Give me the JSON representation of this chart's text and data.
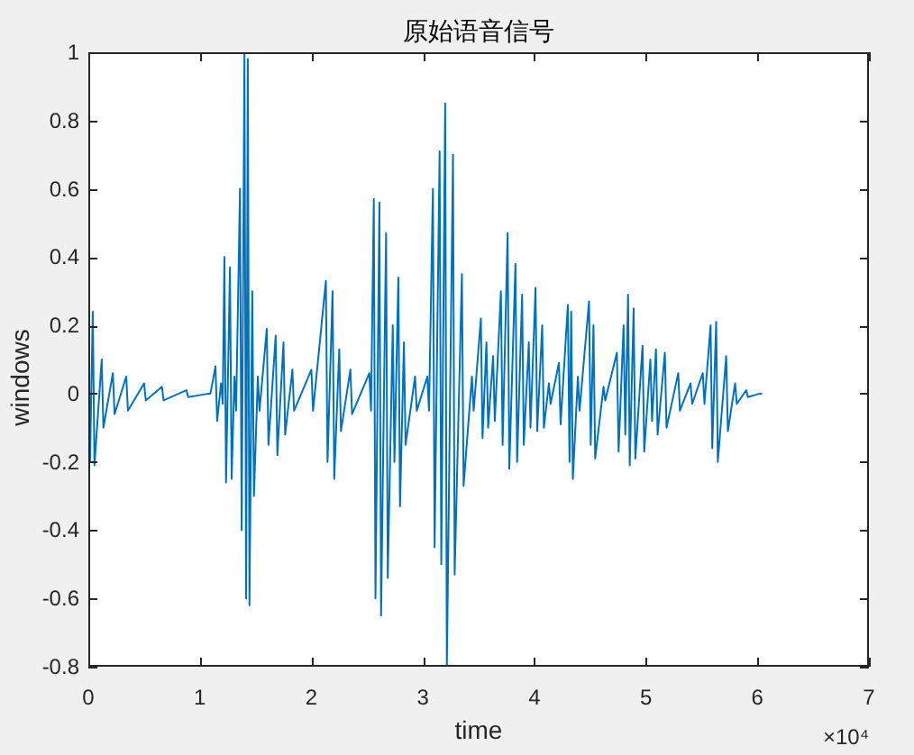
{
  "chart_data": {
    "type": "line",
    "title": "原始语音信号",
    "xlabel": "time",
    "ylabel": "windows",
    "annotations": [
      "×10⁴"
    ],
    "xlim": [
      0,
      7
    ],
    "xticks": [
      0,
      1,
      2,
      3,
      4,
      5,
      6,
      7
    ],
    "ylim": [
      -0.8,
      1
    ],
    "yticks": [
      -0.8,
      -0.6,
      -0.4,
      -0.2,
      0,
      0.2,
      0.4,
      0.6,
      0.8,
      1
    ],
    "series": [
      {
        "color": "#0072bd",
        "x": [
          0,
          0.015,
          0.04,
          0.055,
          0.12,
          0.135,
          0.22,
          0.235,
          0.34,
          0.355,
          0.5,
          0.515,
          0.66,
          0.675,
          0.88,
          0.895,
          1.08,
          1.095,
          1.14,
          1.155,
          1.19,
          1.205,
          1.22,
          1.235,
          1.27,
          1.285,
          1.31,
          1.325,
          1.36,
          1.375,
          1.4,
          1.415,
          1.43,
          1.445,
          1.47,
          1.485,
          1.52,
          1.535,
          1.6,
          1.615,
          1.68,
          1.695,
          1.75,
          1.765,
          1.83,
          1.845,
          2,
          2.015,
          2.13,
          2.145,
          2.19,
          2.205,
          2.25,
          2.265,
          2.35,
          2.365,
          2.52,
          2.535,
          2.56,
          2.575,
          2.61,
          2.625,
          2.67,
          2.685,
          2.73,
          2.745,
          2.78,
          2.795,
          2.83,
          2.845,
          2.93,
          2.945,
          3.04,
          3.055,
          3.09,
          3.105,
          3.15,
          3.165,
          3.2,
          3.215,
          3.27,
          3.285,
          3.35,
          3.365,
          3.44,
          3.455,
          3.52,
          3.535,
          3.57,
          3.585,
          3.63,
          3.645,
          3.7,
          3.715,
          3.76,
          3.775,
          3.83,
          3.845,
          3.89,
          3.905,
          3.95,
          3.965,
          4.01,
          4.025,
          4.07,
          4.085,
          4.13,
          4.145,
          4.22,
          4.235,
          4.3,
          4.315,
          4.33,
          4.345,
          4.39,
          4.405,
          4.49,
          4.505,
          4.53,
          4.545,
          4.62,
          4.635,
          4.74,
          4.755,
          4.8,
          4.815,
          4.84,
          4.855,
          4.89,
          4.905,
          4.97,
          4.985,
          5.04,
          5.055,
          5.09,
          5.105,
          5.17,
          5.185,
          5.29,
          5.305,
          5.4,
          5.415,
          5.51,
          5.525,
          5.58,
          5.595,
          5.63,
          5.645,
          5.72,
          5.735,
          5.8,
          5.815,
          5.9,
          5.915,
          6.02,
          6.035
        ],
        "values": [
          0.22,
          -0.2,
          0.24,
          -0.21,
          0.1,
          -0.1,
          0.06,
          -0.06,
          0.05,
          -0.05,
          0.03,
          -0.02,
          0.02,
          -0.02,
          0.01,
          -0.01,
          0,
          0,
          0.08,
          -0.08,
          0.03,
          -0.03,
          0.4,
          -0.26,
          0.37,
          -0.25,
          0.05,
          -0.05,
          0.6,
          -0.4,
          1,
          -0.6,
          0.98,
          -0.62,
          0.3,
          -0.3,
          0.05,
          -0.05,
          0.19,
          -0.15,
          0.17,
          -0.18,
          0.15,
          -0.12,
          0.07,
          -0.05,
          0.07,
          -0.05,
          0.33,
          -0.2,
          0.3,
          -0.25,
          0.13,
          -0.11,
          0.07,
          -0.06,
          0.06,
          -0.05,
          0.57,
          -0.6,
          0.56,
          -0.65,
          0.47,
          -0.54,
          0.2,
          -0.2,
          0.34,
          -0.33,
          0.15,
          -0.15,
          0.05,
          -0.05,
          0.05,
          -0.05,
          0.6,
          -0.45,
          0.71,
          -0.5,
          0.85,
          -0.8,
          0.7,
          -0.53,
          0.35,
          -0.27,
          0.05,
          -0.05,
          0.22,
          -0.13,
          0.15,
          -0.1,
          0.11,
          -0.08,
          0.3,
          -0.15,
          0.47,
          -0.22,
          0.38,
          -0.2,
          0.29,
          -0.15,
          0.15,
          -0.1,
          0.31,
          -0.11,
          0.2,
          -0.1,
          0.03,
          -0.03,
          0.09,
          -0.09,
          0.26,
          -0.2,
          0.24,
          -0.25,
          0.05,
          -0.05,
          0.27,
          -0.15,
          0.2,
          -0.19,
          0.02,
          -0.02,
          0.12,
          -0.17,
          0.2,
          -0.12,
          0.29,
          -0.21,
          0.25,
          -0.19,
          0.14,
          -0.17,
          0.1,
          -0.08,
          0.13,
          -0.12,
          0.12,
          -0.1,
          0.06,
          -0.05,
          0.03,
          -0.03,
          0.06,
          -0.03,
          0.2,
          -0.16,
          0.21,
          -0.2,
          0.11,
          -0.11,
          0.03,
          -0.03,
          0.01,
          -0.01,
          0,
          0
        ]
      }
    ]
  }
}
